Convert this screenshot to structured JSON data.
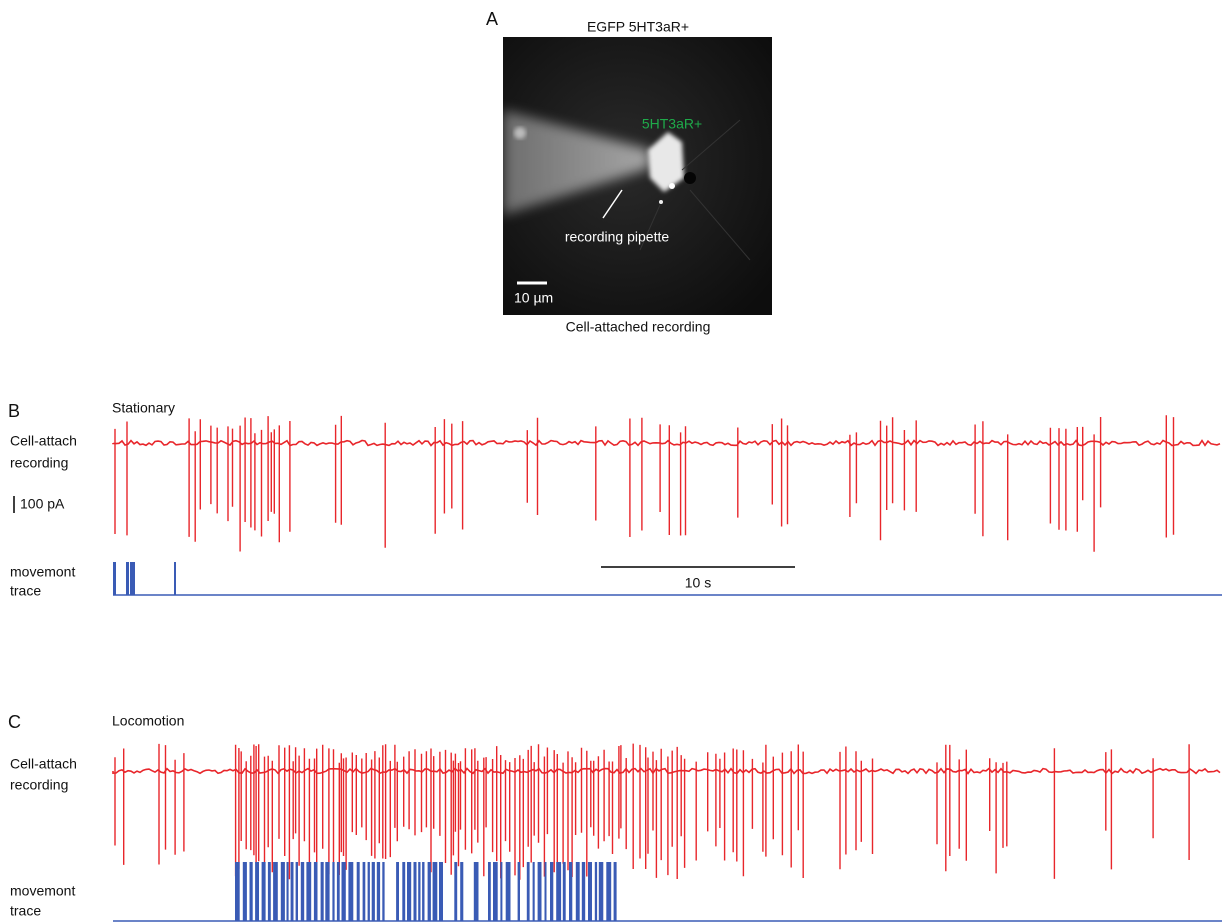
{
  "panels": {
    "A": {
      "label": "A",
      "title": "EGFP 5HT3aR+",
      "cell_label": "5HT3aR+",
      "pipette_label": "recording pipette",
      "scale_label": "10 µm",
      "caption": "Cell-attached recording"
    },
    "B": {
      "label": "B",
      "condition": "Stationary",
      "recording_label": [
        "Cell-attach",
        "recording"
      ],
      "amplitude_scale": "100 pA",
      "movement_label": [
        "movemont",
        "trace"
      ],
      "time_scale": "10 s"
    },
    "C": {
      "label": "C",
      "condition": "Locomotion",
      "recording_label": [
        "Cell-attach",
        "recording"
      ],
      "movement_label": [
        "movemont",
        "trace"
      ]
    }
  }
}
